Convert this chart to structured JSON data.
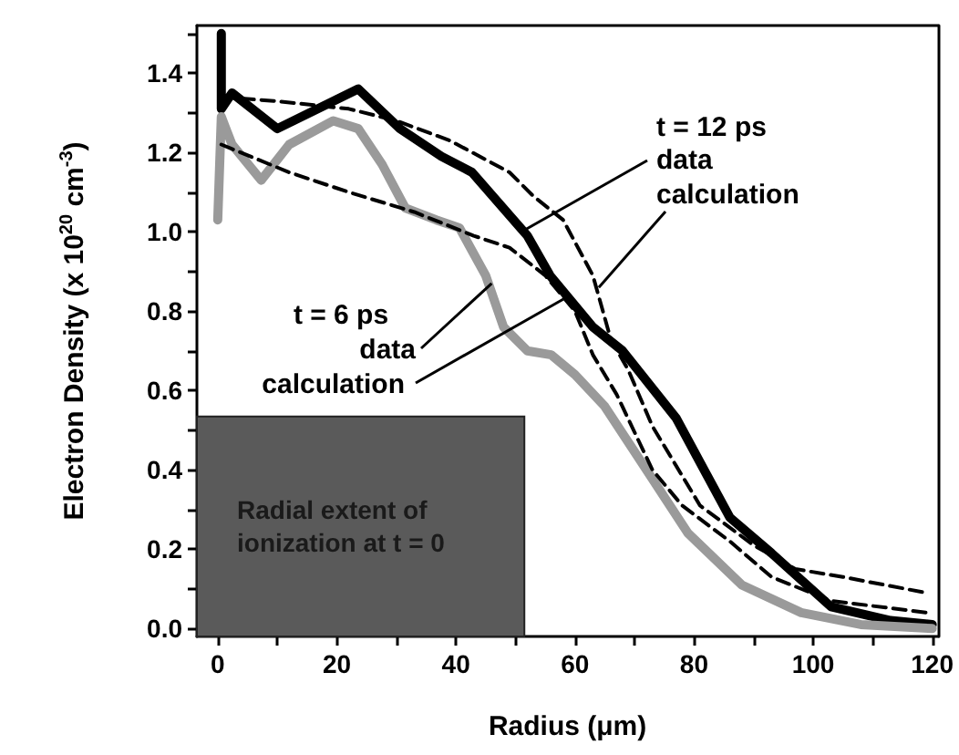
{
  "chart_data": {
    "type": "line",
    "xlabel": "Radius (μm)",
    "ylabel": "Electron Density (x 10$^{20}$ cm$^{-3}$)",
    "xlim": [
      -3.5,
      121
    ],
    "ylim": [
      -0.02,
      1.52
    ],
    "xticks": [
      0,
      {
        "value": 10,
        "label": null
      },
      20,
      {
        "value": 30,
        "label": null
      },
      40,
      {
        "value": 50,
        "label": null
      },
      60,
      {
        "value": 70,
        "label": null
      },
      80,
      {
        "value": 90,
        "label": null
      },
      100,
      {
        "value": 110,
        "label": null
      },
      120
    ],
    "yticks": [
      {
        "value": 0,
        "label": "0.0"
      },
      {
        "value": 0.1,
        "label": null
      },
      {
        "value": 0.2,
        "label": "0.2"
      },
      {
        "value": 0.3,
        "label": null
      },
      {
        "value": 0.4,
        "label": "0.4"
      },
      {
        "value": 0.5,
        "label": null
      },
      {
        "value": 0.6,
        "label": "0.6"
      },
      {
        "value": 0.7,
        "label": null
      },
      {
        "value": 0.8,
        "label": "0.8"
      },
      {
        "value": 0.9,
        "label": null
      },
      {
        "value": 1.0,
        "label": "1.0"
      },
      {
        "value": 1.1,
        "label": null
      },
      {
        "value": 1.2,
        "label": "1.2"
      },
      {
        "value": 1.3,
        "label": null
      },
      {
        "value": 1.4,
        "label": "1.4"
      },
      {
        "value": 1.5,
        "label": null
      }
    ],
    "grid": false,
    "marker": "none",
    "series": [
      {
        "color": "#000000",
        "line_style": "solid",
        "x": [
          0.6,
          0.6,
          2.4,
          10,
          23.6,
          30.6,
          37.6,
          42.7,
          52,
          55.8,
          63,
          68,
          77,
          86,
          93,
          103,
          113,
          120
        ],
        "values": [
          1.5,
          1.31,
          1.35,
          1.26,
          1.36,
          1.26,
          1.19,
          1.15,
          0.99,
          0.89,
          0.76,
          0.7,
          0.53,
          0.28,
          0.19,
          0.055,
          0.02,
          0.01
        ]
      },
      {
        "color": "#9a9a9a",
        "line_style": "solid",
        "x": [
          0,
          0.6,
          2.4,
          7.3,
          12,
          19.4,
          23.6,
          27.6,
          31.5,
          36.7,
          40.6,
          45,
          48,
          52,
          56,
          60,
          65,
          72,
          79,
          88,
          98,
          108,
          120
        ],
        "values": [
          1.03,
          1.29,
          1.22,
          1.13,
          1.22,
          1.28,
          1.26,
          1.17,
          1.06,
          1.03,
          1.01,
          0.89,
          0.76,
          0.7,
          0.69,
          0.64,
          0.56,
          0.4,
          0.24,
          0.11,
          0.04,
          0.01,
          0.0
        ]
      },
      {
        "color": "#000000",
        "line_style": "dashed",
        "x": [
          0.6,
          9.4,
          22,
          30,
          39,
          49,
          53,
          58,
          63,
          66,
          69,
          73,
          81,
          90,
          97,
          105,
          119
        ],
        "values": [
          1.34,
          1.33,
          1.31,
          1.28,
          1.23,
          1.15,
          1.09,
          1.03,
          0.89,
          0.73,
          0.65,
          0.51,
          0.31,
          0.21,
          0.15,
          0.13,
          0.09
        ]
      },
      {
        "color": "#000000",
        "line_style": "dashed",
        "x": [
          0.6,
          12,
          22,
          33,
          43,
          49,
          55,
          60,
          63,
          67,
          73,
          78,
          86,
          93,
          103,
          119
        ],
        "values": [
          1.22,
          1.15,
          1.1,
          1.05,
          0.99,
          0.96,
          0.89,
          0.8,
          0.69,
          0.59,
          0.4,
          0.31,
          0.22,
          0.13,
          0.07,
          0.04
        ]
      }
    ],
    "bands": [
      {
        "axis": "x",
        "from": -3.5,
        "to": 51.5,
        "label": "Radial extent of ionization at t = 0",
        "color": "#5a5a5a"
      }
    ],
    "annotations": [
      "t = 12 ps",
      {
        "text": "data",
        "x": 51,
        "y": 1.0
      },
      {
        "text": "calculation",
        "x": 64,
        "y": 0.86
      },
      "t = 6 ps",
      {
        "text": "data",
        "x": 46,
        "y": 0.87
      },
      {
        "text": "calculation",
        "x": 58,
        "y": 0.83
      }
    ]
  }
}
